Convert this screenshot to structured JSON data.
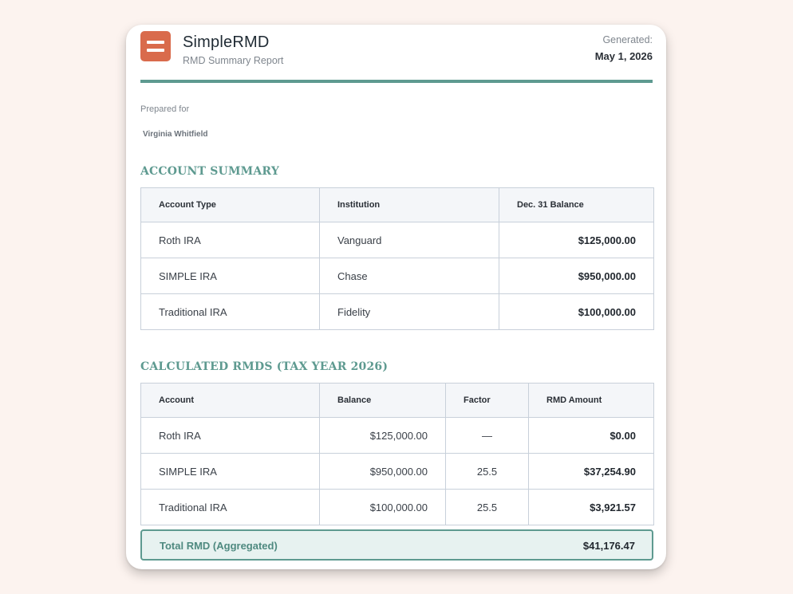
{
  "brand": {
    "name": "SimpleRMD",
    "subtitle": "RMD Summary Report",
    "logo_icon": "menu-lines-icon",
    "logo_color": "#d96b4c"
  },
  "generated": {
    "label": "Generated:",
    "date": "May 1, 2026"
  },
  "prepared": {
    "label": "Prepared for",
    "name": "Virginia Whitfield"
  },
  "colors": {
    "accent": "#5e9a90",
    "background": "#fcf3ef"
  },
  "account_summary": {
    "title": "ACCOUNT SUMMARY",
    "headers": [
      "Account Type",
      "Institution",
      "Dec. 31 Balance"
    ],
    "rows": [
      {
        "type": "Roth IRA",
        "institution": "Vanguard",
        "balance": "$125,000.00"
      },
      {
        "type": "SIMPLE IRA",
        "institution": "Chase",
        "balance": "$950,000.00"
      },
      {
        "type": "Traditional IRA",
        "institution": "Fidelity",
        "balance": "$100,000.00"
      }
    ]
  },
  "calculated_rmds": {
    "title": "CALCULATED RMDS (TAX YEAR 2026)",
    "headers": [
      "Account",
      "Balance",
      "Factor",
      "RMD Amount"
    ],
    "rows": [
      {
        "account": "Roth IRA",
        "balance": "$125,000.00",
        "factor": "—",
        "rmd": "$0.00"
      },
      {
        "account": "SIMPLE IRA",
        "balance": "$950,000.00",
        "factor": "25.5",
        "rmd": "$37,254.90"
      },
      {
        "account": "Traditional IRA",
        "balance": "$100,000.00",
        "factor": "25.5",
        "rmd": "$3,921.57"
      }
    ]
  },
  "total": {
    "label": "Total RMD (Aggregated)",
    "value": "$41,176.47"
  }
}
